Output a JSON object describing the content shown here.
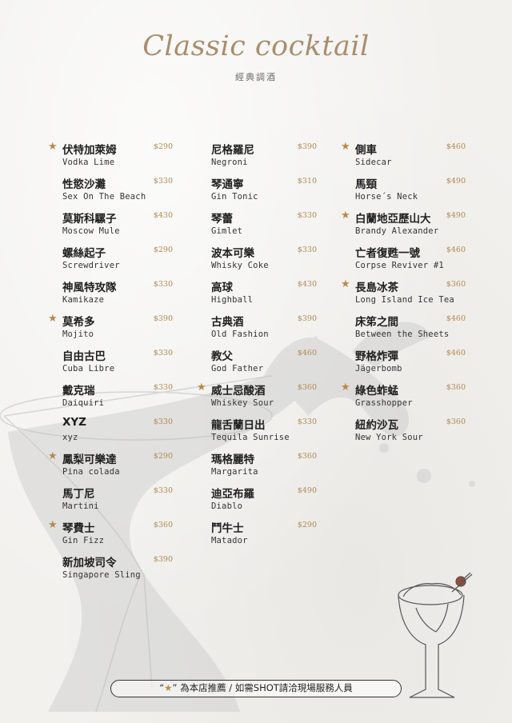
{
  "header": {
    "title": "Classic cocktail",
    "subtitle": "經典調酒"
  },
  "columns": [
    {
      "items": [
        {
          "zh": "伏特加萊姆",
          "en": "Vodka Lime",
          "price": "$290",
          "recommended": true
        },
        {
          "zh": "性慾沙灘",
          "en": "Sex On The Beach",
          "price": "$330",
          "recommended": false
        },
        {
          "zh": "莫斯科騾子",
          "en": "Moscow Mule",
          "price": "$430",
          "recommended": false
        },
        {
          "zh": "螺絲起子",
          "en": "Screwdriver",
          "price": "$290",
          "recommended": false
        },
        {
          "zh": "神風特攻隊",
          "en": "Kamikaze",
          "price": "$330",
          "recommended": false
        },
        {
          "zh": "莫希多",
          "en": "Mojito",
          "price": "$390",
          "recommended": true
        },
        {
          "zh": "自由古巴",
          "en": "Cuba Libre",
          "price": "$330",
          "recommended": false
        },
        {
          "zh": "戴克瑞",
          "en": "Daiquiri",
          "price": "$330",
          "recommended": false
        },
        {
          "zh": "XYZ",
          "en": "xyz",
          "price": "$330",
          "recommended": false
        },
        {
          "zh": "鳳梨可樂達",
          "en": "Pina colada",
          "price": "$290",
          "recommended": true
        },
        {
          "zh": "馬丁尼",
          "en": "Martini",
          "price": "$330",
          "recommended": false
        },
        {
          "zh": "琴費士",
          "en": "Gin Fizz",
          "price": "$360",
          "recommended": true
        },
        {
          "zh": "新加坡司令",
          "en": "Singapore Sling",
          "price": "$390",
          "recommended": false
        }
      ]
    },
    {
      "items": [
        {
          "zh": "尼格羅尼",
          "en": "Negroni",
          "price": "$390",
          "recommended": false
        },
        {
          "zh": "琴通寧",
          "en": "Gin Tonic",
          "price": "$310",
          "recommended": false
        },
        {
          "zh": "琴蕾",
          "en": "Gimlet",
          "price": "$330",
          "recommended": false
        },
        {
          "zh": "波本可樂",
          "en": "Whisky Coke",
          "price": "$330",
          "recommended": false
        },
        {
          "zh": "高球",
          "en": "Highball",
          "price": "$430",
          "recommended": false
        },
        {
          "zh": "古典酒",
          "en": "Old Fashion",
          "price": "$390",
          "recommended": false
        },
        {
          "zh": "教父",
          "en": "God Father",
          "price": "$460",
          "recommended": false
        },
        {
          "zh": "威士忌酸酒",
          "en": "Whiskey Sour",
          "price": "$360",
          "recommended": true
        },
        {
          "zh": "龍舌蘭日出",
          "en": "Tequila Sunrise",
          "price": "$330",
          "recommended": false
        },
        {
          "zh": "瑪格麗特",
          "en": "Margarita",
          "price": "$360",
          "recommended": false
        },
        {
          "zh": "迪亞布羅",
          "en": "Diablo",
          "price": "$490",
          "recommended": false
        },
        {
          "zh": "鬥牛士",
          "en": "Matador",
          "price": "$290",
          "recommended": false
        }
      ]
    },
    {
      "items": [
        {
          "zh": "側車",
          "en": "Sidecar",
          "price": "$460",
          "recommended": true
        },
        {
          "zh": "馬頸",
          "en": "Horse´s Neck",
          "price": "$490",
          "recommended": false
        },
        {
          "zh": "白蘭地亞歷山大",
          "en": "Brandy Alexander",
          "price": "$490",
          "recommended": true
        },
        {
          "zh": "亡者復甦一號",
          "en": "Corpse Reviver #1",
          "price": "$460",
          "recommended": false
        },
        {
          "zh": "長島冰茶",
          "en": "Long Island Ice Tea",
          "price": "$360",
          "recommended": true
        },
        {
          "zh": "床笫之間",
          "en": "Between the Sheets",
          "price": "$460",
          "recommended": false
        },
        {
          "zh": "野格炸彈",
          "en": "Jägerbomb",
          "price": "$460",
          "recommended": false
        },
        {
          "zh": "綠色蚱蜢",
          "en": "Grasshopper",
          "price": "$360",
          "recommended": true
        },
        {
          "zh": "紐約沙瓦",
          "en": "New York Sour",
          "price": "$360",
          "recommended": false
        }
      ]
    }
  ],
  "footer": {
    "open_quote": "“",
    "star": "★",
    "close_quote": "”",
    "text": "為本店推薦 / 如需SHOT請洽現場服務人員"
  },
  "colors": {
    "accent_gold": "#b08a55",
    "title_gold": "#a88e6f",
    "text_dark": "#1e1e1e"
  },
  "icons": {
    "recommended": "star-icon",
    "decoration": "cocktail-glass-illustration"
  }
}
